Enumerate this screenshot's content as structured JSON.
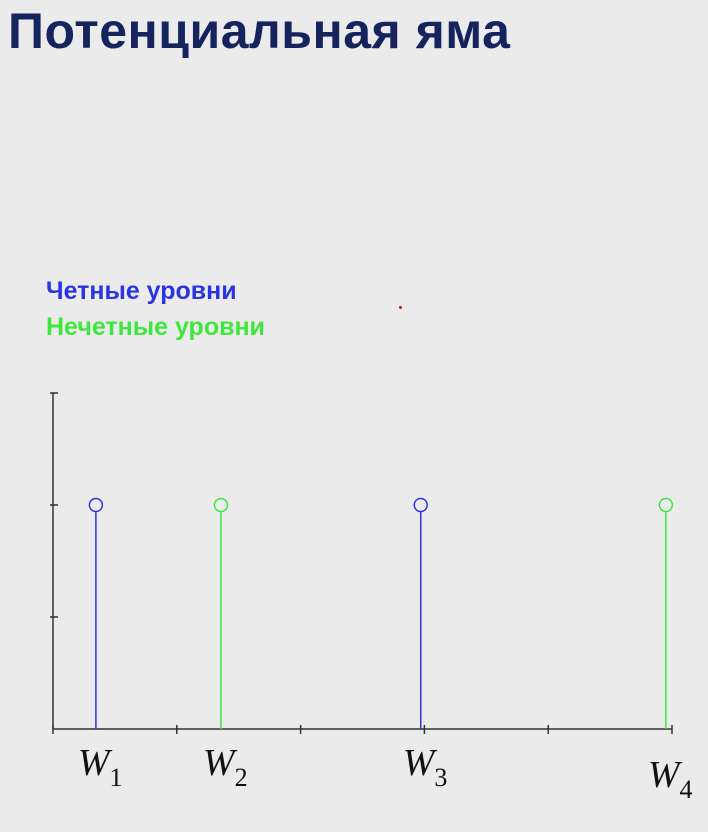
{
  "title": "Потенциальная яма",
  "legend": {
    "even": {
      "label": "Четные уровни",
      "color": "#2a35e0"
    },
    "odd": {
      "label": "Нечетные уровни",
      "color": "#3ee63e"
    }
  },
  "chart_data": {
    "type": "stem",
    "x_axis_ticks": 5,
    "y_axis_ticks": 3,
    "series": [
      {
        "name": "Четные уровни",
        "color": "#2a35e0",
        "x": [
          0.35,
          3.0
        ],
        "values": [
          1,
          1
        ]
      },
      {
        "name": "Нечетные уровни",
        "color": "#3ee63e",
        "x": [
          1.37,
          5.0
        ],
        "values": [
          1,
          1
        ]
      }
    ],
    "x_labels": [
      {
        "base": "W",
        "sub": "1",
        "x": 0.35
      },
      {
        "base": "W",
        "sub": "2",
        "x": 1.37
      },
      {
        "base": "W",
        "sub": "3",
        "x": 3.0
      },
      {
        "base": "W",
        "sub": "4",
        "x": 5.0
      }
    ],
    "xlim": [
      0,
      5.05
    ],
    "ylim": [
      0,
      1.5
    ]
  }
}
